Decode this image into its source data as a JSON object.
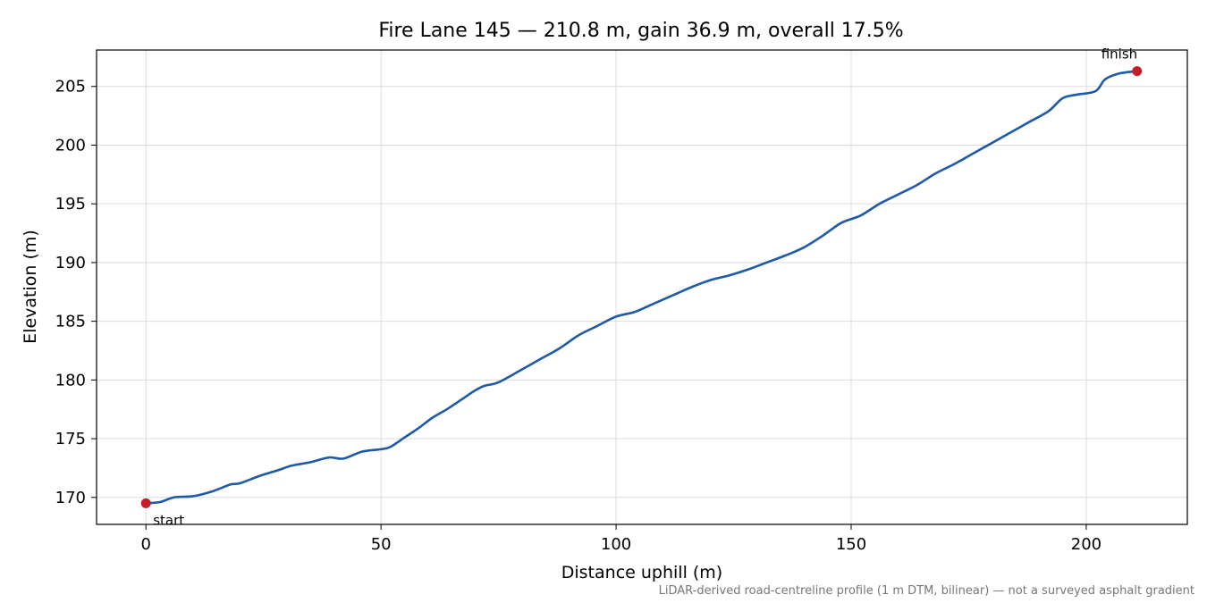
{
  "chart_data": {
    "type": "line",
    "title": "Fire Lane 145 — 210.8 m, gain 36.9 m, overall 17.5%",
    "xlabel": "Distance uphill (m)",
    "ylabel": "Elevation (m)",
    "xlim": [
      -10.5,
      221.5
    ],
    "ylim": [
      167.7,
      208.1
    ],
    "xticks": [
      0,
      50,
      100,
      150,
      200
    ],
    "yticks": [
      170,
      175,
      180,
      185,
      190,
      195,
      200,
      205
    ],
    "grid": true,
    "series": [
      {
        "color": "#1f5aa8",
        "x": [
          0,
          3,
          6,
          10,
          14,
          18,
          20,
          24,
          28,
          31,
          35,
          39,
          42,
          46,
          50,
          52,
          55,
          58,
          61,
          64,
          67,
          70,
          72,
          75,
          80,
          84,
          88,
          92,
          96,
          100,
          104,
          108,
          112,
          116,
          120,
          124,
          128,
          132,
          136,
          140,
          144,
          148,
          152,
          156,
          160,
          164,
          168,
          172,
          176,
          180,
          184,
          188,
          192,
          195,
          198,
          202,
          204,
          207,
          210.8
        ],
        "y": [
          169.5,
          169.6,
          170.0,
          170.1,
          170.5,
          171.1,
          171.2,
          171.8,
          172.3,
          172.7,
          173.0,
          173.4,
          173.3,
          173.9,
          174.1,
          174.3,
          175.1,
          175.9,
          176.8,
          177.5,
          178.3,
          179.1,
          179.5,
          179.8,
          180.9,
          181.8,
          182.7,
          183.8,
          184.6,
          185.4,
          185.8,
          186.5,
          187.2,
          187.9,
          188.5,
          188.9,
          189.4,
          190.0,
          190.6,
          191.3,
          192.3,
          193.4,
          194.0,
          195.0,
          195.8,
          196.6,
          197.6,
          198.4,
          199.3,
          200.2,
          201.1,
          202.0,
          202.9,
          204.0,
          204.3,
          204.6,
          205.6,
          206.1,
          206.3
        ]
      }
    ],
    "points": [
      {
        "label": "start",
        "x": 0,
        "y": 169.5,
        "color": "#c41e2c"
      },
      {
        "label": "finish",
        "x": 210.8,
        "y": 206.3,
        "color": "#c41e2c"
      }
    ],
    "footnote": "LiDAR-derived road-centreline profile (1 m DTM, bilinear) — not a surveyed asphalt gradient"
  }
}
